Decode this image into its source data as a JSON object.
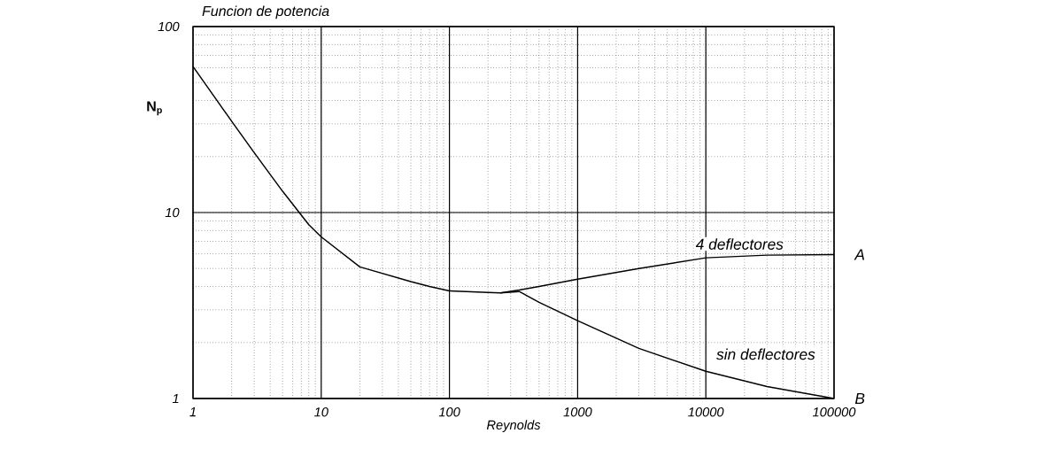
{
  "chart_data": {
    "type": "line",
    "title": "Funcion de potencia",
    "xlabel": "Reynolds",
    "ylabel": "N$_{p}$",
    "log": "xy",
    "grid": true,
    "marker": "none",
    "line_style": "solid",
    "xlim": [
      1,
      100000
    ],
    "ylim": [
      1,
      100
    ],
    "xticks": [
      1,
      10,
      100,
      1000,
      10000,
      100000
    ],
    "yticks": [
      1,
      10,
      100
    ],
    "series": [
      {
        "name": "4 deflectores",
        "color": "#000000",
        "x": [
          1,
          2,
          3,
          5,
          8,
          10,
          20,
          50,
          70,
          100,
          200,
          250,
          350,
          500,
          1000,
          3000,
          10000,
          30000,
          100000
        ],
        "values": [
          61,
          31,
          21,
          13,
          8.6,
          7.4,
          5.1,
          4.25,
          4.0,
          3.79,
          3.72,
          3.7,
          3.83,
          4.0,
          4.38,
          5.0,
          5.71,
          5.9,
          5.94
        ]
      },
      {
        "name": "sin deflectores",
        "color": "#000000",
        "x": [
          250,
          350,
          500,
          1000,
          3000,
          10000,
          30000,
          100000
        ],
        "values": [
          3.7,
          3.76,
          3.29,
          2.62,
          1.86,
          1.4,
          1.16,
          1.0
        ]
      }
    ],
    "annotations": [
      {
        "text": "A",
        "x": 100000,
        "y": 5.94
      },
      {
        "text": "B",
        "x": 100000,
        "y": 1.0
      }
    ]
  }
}
